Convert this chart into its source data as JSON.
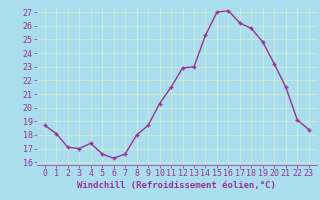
{
  "x": [
    0,
    1,
    2,
    3,
    4,
    5,
    6,
    7,
    8,
    9,
    10,
    11,
    12,
    13,
    14,
    15,
    16,
    17,
    18,
    19,
    20,
    21,
    22,
    23
  ],
  "y": [
    18.7,
    18.1,
    17.1,
    17.0,
    17.4,
    16.6,
    16.3,
    16.6,
    18.0,
    18.7,
    20.3,
    21.5,
    22.9,
    23.0,
    25.3,
    27.0,
    27.1,
    26.2,
    25.8,
    24.8,
    23.2,
    21.5,
    19.1,
    18.4
  ],
  "line_color": "#993399",
  "marker": "+",
  "bg_color": "#aaddee",
  "grid_color": "#bbddcc",
  "xlabel": "Windchill (Refroidissement éolien,°C)",
  "tick_color": "#993399",
  "ylim_min": 15.8,
  "ylim_max": 27.3,
  "yticks": [
    16,
    17,
    18,
    19,
    20,
    21,
    22,
    23,
    24,
    25,
    26,
    27
  ],
  "xticks": [
    0,
    1,
    2,
    3,
    4,
    5,
    6,
    7,
    8,
    9,
    10,
    11,
    12,
    13,
    14,
    15,
    16,
    17,
    18,
    19,
    20,
    21,
    22,
    23
  ],
  "xtick_labels": [
    "0",
    "1",
    "2",
    "3",
    "4",
    "5",
    "6",
    "7",
    "8",
    "9",
    "10",
    "11",
    "12",
    "13",
    "14",
    "15",
    "16",
    "17",
    "18",
    "19",
    "20",
    "21",
    "22",
    "23"
  ],
  "line_width": 1.0,
  "marker_size": 3,
  "font_size_ticks": 6,
  "font_size_xlabel": 6.5
}
